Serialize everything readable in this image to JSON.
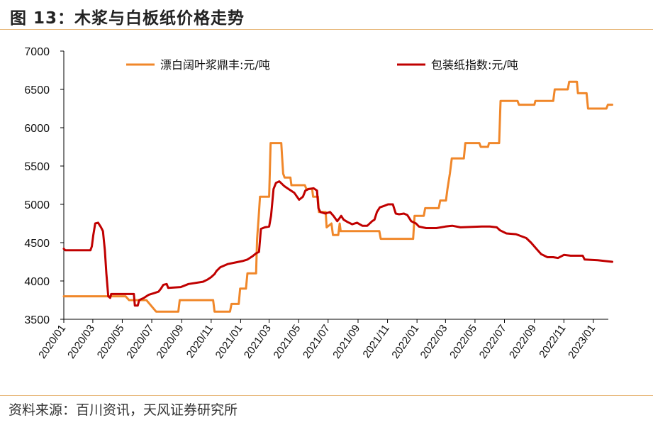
{
  "figure": {
    "title": "图 13：木浆与白板纸价格走势",
    "source": "资料来源：百川资讯，天风证券研究所"
  },
  "colors": {
    "pulp": "#f0872a",
    "board": "#c00000",
    "axis": "#000000",
    "rule": "#e7b77a"
  },
  "chart_data": {
    "type": "line",
    "title": "",
    "xlabel": "",
    "ylabel": "",
    "ylim": [
      3500,
      7000
    ],
    "yticks": [
      "7000",
      "6500",
      "6000",
      "5500",
      "5000",
      "4500",
      "4000",
      "3500"
    ],
    "xlim": [
      "2020-01",
      "2023-02"
    ],
    "xticks": [
      "2020/01",
      "2020/03",
      "2020/05",
      "2020/07",
      "2020/09",
      "2020/11",
      "2021/01",
      "2021/03",
      "2021/05",
      "2021/07",
      "2021/09",
      "2021/11",
      "2022/01",
      "2022/03",
      "2022/05",
      "2022/07",
      "2022/09",
      "2022/11",
      "2023/01"
    ],
    "legend_position": "top",
    "grid": false,
    "series": [
      {
        "name": "漂白阔叶浆鼎丰:元/吨",
        "color": "#f0872a",
        "step": true,
        "points": [
          [
            "2020-01-01",
            3800
          ],
          [
            "2020-05-08",
            3800
          ],
          [
            "2020-05-15",
            3750
          ],
          [
            "2020-06-20",
            3750
          ],
          [
            "2020-07-10",
            3600
          ],
          [
            "2020-08-25",
            3600
          ],
          [
            "2020-08-28",
            3750
          ],
          [
            "2020-11-05",
            3750
          ],
          [
            "2020-11-08",
            3600
          ],
          [
            "2020-12-10",
            3600
          ],
          [
            "2020-12-13",
            3700
          ],
          [
            "2020-12-28",
            3700
          ],
          [
            "2020-12-31",
            3900
          ],
          [
            "2021-01-12",
            3900
          ],
          [
            "2021-01-15",
            4100
          ],
          [
            "2021-02-02",
            4100
          ],
          [
            "2021-02-04",
            4550
          ],
          [
            "2021-02-07",
            4800
          ],
          [
            "2021-02-10",
            5100
          ],
          [
            "2021-03-01",
            5100
          ],
          [
            "2021-03-04",
            5800
          ],
          [
            "2021-03-26",
            5800
          ],
          [
            "2021-03-28",
            5600
          ],
          [
            "2021-03-30",
            5400
          ],
          [
            "2021-04-02",
            5350
          ],
          [
            "2021-04-14",
            5350
          ],
          [
            "2021-04-16",
            5250
          ],
          [
            "2021-05-14",
            5250
          ],
          [
            "2021-05-17",
            5200
          ],
          [
            "2021-05-29",
            5200
          ],
          [
            "2021-05-31",
            5100
          ],
          [
            "2021-06-10",
            5100
          ],
          [
            "2021-06-12",
            4900
          ],
          [
            "2021-06-26",
            4900
          ],
          [
            "2021-06-28",
            4700
          ],
          [
            "2021-07-08",
            4750
          ],
          [
            "2021-07-11",
            4600
          ],
          [
            "2021-07-22",
            4600
          ],
          [
            "2021-07-25",
            4750
          ],
          [
            "2021-07-27",
            4650
          ],
          [
            "2021-10-15",
            4650
          ],
          [
            "2021-10-18",
            4550
          ],
          [
            "2021-12-24",
            4550
          ],
          [
            "2021-12-27",
            4850
          ],
          [
            "2022-01-15",
            4850
          ],
          [
            "2022-01-18",
            4950
          ],
          [
            "2022-02-15",
            4950
          ],
          [
            "2022-02-18",
            5050
          ],
          [
            "2022-03-02",
            5050
          ],
          [
            "2022-03-05",
            5200
          ],
          [
            "2022-03-10",
            5400
          ],
          [
            "2022-03-14",
            5600
          ],
          [
            "2022-04-08",
            5600
          ],
          [
            "2022-04-11",
            5800
          ],
          [
            "2022-05-10",
            5800
          ],
          [
            "2022-05-13",
            5750
          ],
          [
            "2022-05-28",
            5750
          ],
          [
            "2022-05-30",
            5800
          ],
          [
            "2022-06-20",
            5800
          ],
          [
            "2022-06-23",
            6350
          ],
          [
            "2022-07-28",
            6350
          ],
          [
            "2022-07-31",
            6300
          ],
          [
            "2022-09-01",
            6300
          ],
          [
            "2022-09-03",
            6350
          ],
          [
            "2022-10-10",
            6350
          ],
          [
            "2022-10-13",
            6500
          ],
          [
            "2022-11-09",
            6500
          ],
          [
            "2022-11-12",
            6600
          ],
          [
            "2022-11-28",
            6600
          ],
          [
            "2022-11-30",
            6450
          ],
          [
            "2022-12-18",
            6450
          ],
          [
            "2022-12-21",
            6250
          ],
          [
            "2023-01-28",
            6250
          ],
          [
            "2023-01-31",
            6300
          ],
          [
            "2023-02-09",
            6300
          ]
        ]
      },
      {
        "name": "包装纸指数:元/吨",
        "color": "#c00000",
        "step": false,
        "points": [
          [
            "2020-01-01",
            4420
          ],
          [
            "2020-01-04",
            4400
          ],
          [
            "2020-02-25",
            4400
          ],
          [
            "2020-02-28",
            4450
          ],
          [
            "2020-03-02",
            4600
          ],
          [
            "2020-03-06",
            4750
          ],
          [
            "2020-03-12",
            4760
          ],
          [
            "2020-03-18",
            4700
          ],
          [
            "2020-03-22",
            4650
          ],
          [
            "2020-03-26",
            4400
          ],
          [
            "2020-03-29",
            4100
          ],
          [
            "2020-04-02",
            3800
          ],
          [
            "2020-04-06",
            3780
          ],
          [
            "2020-04-08",
            3830
          ],
          [
            "2020-05-25",
            3830
          ],
          [
            "2020-05-27",
            3680
          ],
          [
            "2020-06-02",
            3680
          ],
          [
            "2020-06-05",
            3750
          ],
          [
            "2020-06-15",
            3780
          ],
          [
            "2020-06-25",
            3820
          ],
          [
            "2020-07-05",
            3840
          ],
          [
            "2020-07-15",
            3860
          ],
          [
            "2020-07-20",
            3900
          ],
          [
            "2020-07-25",
            3950
          ],
          [
            "2020-08-01",
            3960
          ],
          [
            "2020-08-04",
            3910
          ],
          [
            "2020-08-30",
            3920
          ],
          [
            "2020-09-15",
            3960
          ],
          [
            "2020-10-15",
            3990
          ],
          [
            "2020-10-25",
            4020
          ],
          [
            "2020-11-01",
            4050
          ],
          [
            "2020-11-08",
            4090
          ],
          [
            "2020-11-12",
            4130
          ],
          [
            "2020-11-20",
            4180
          ],
          [
            "2020-12-05",
            4220
          ],
          [
            "2020-12-20",
            4240
          ],
          [
            "2021-01-05",
            4260
          ],
          [
            "2021-01-15",
            4280
          ],
          [
            "2021-01-25",
            4320
          ],
          [
            "2021-02-02",
            4360
          ],
          [
            "2021-02-08",
            4380
          ],
          [
            "2021-02-12",
            4680
          ],
          [
            "2021-02-20",
            4700
          ],
          [
            "2021-03-01",
            4710
          ],
          [
            "2021-03-05",
            4850
          ],
          [
            "2021-03-10",
            5200
          ],
          [
            "2021-03-15",
            5280
          ],
          [
            "2021-03-22",
            5300
          ],
          [
            "2021-04-01",
            5240
          ],
          [
            "2021-04-10",
            5200
          ],
          [
            "2021-04-22",
            5150
          ],
          [
            "2021-05-02",
            5060
          ],
          [
            "2021-05-10",
            5100
          ],
          [
            "2021-05-15",
            5180
          ],
          [
            "2021-05-22",
            5200
          ],
          [
            "2021-06-01",
            5210
          ],
          [
            "2021-06-08",
            5180
          ],
          [
            "2021-06-11",
            4950
          ],
          [
            "2021-06-15",
            4900
          ],
          [
            "2021-06-25",
            4880
          ],
          [
            "2021-07-05",
            4900
          ],
          [
            "2021-07-12",
            4850
          ],
          [
            "2021-07-20",
            4780
          ],
          [
            "2021-07-28",
            4850
          ],
          [
            "2021-08-02",
            4800
          ],
          [
            "2021-08-10",
            4770
          ],
          [
            "2021-08-20",
            4740
          ],
          [
            "2021-08-30",
            4760
          ],
          [
            "2021-09-10",
            4720
          ],
          [
            "2021-09-20",
            4720
          ],
          [
            "2021-09-30",
            4780
          ],
          [
            "2021-10-05",
            4800
          ],
          [
            "2021-10-10",
            4900
          ],
          [
            "2021-10-16",
            4960
          ],
          [
            "2021-10-25",
            4980
          ],
          [
            "2021-11-02",
            5000
          ],
          [
            "2021-11-12",
            5000
          ],
          [
            "2021-11-18",
            4880
          ],
          [
            "2021-11-25",
            4870
          ],
          [
            "2021-12-05",
            4880
          ],
          [
            "2021-12-12",
            4860
          ],
          [
            "2021-12-20",
            4780
          ],
          [
            "2021-12-30",
            4750
          ],
          [
            "2022-01-05",
            4710
          ],
          [
            "2022-01-20",
            4690
          ],
          [
            "2022-02-10",
            4690
          ],
          [
            "2022-03-01",
            4710
          ],
          [
            "2022-03-15",
            4720
          ],
          [
            "2022-04-01",
            4700
          ],
          [
            "2022-05-15",
            4710
          ],
          [
            "2022-06-01",
            4710
          ],
          [
            "2022-06-15",
            4700
          ],
          [
            "2022-06-22",
            4660
          ],
          [
            "2022-07-05",
            4620
          ],
          [
            "2022-07-25",
            4610
          ],
          [
            "2022-08-15",
            4560
          ],
          [
            "2022-08-25",
            4500
          ],
          [
            "2022-09-05",
            4420
          ],
          [
            "2022-09-15",
            4350
          ],
          [
            "2022-09-28",
            4310
          ],
          [
            "2022-10-10",
            4310
          ],
          [
            "2022-10-20",
            4300
          ],
          [
            "2022-11-01",
            4340
          ],
          [
            "2022-11-15",
            4330
          ],
          [
            "2022-12-10",
            4330
          ],
          [
            "2022-12-14",
            4280
          ],
          [
            "2023-01-10",
            4270
          ],
          [
            "2023-02-09",
            4250
          ]
        ]
      }
    ]
  }
}
